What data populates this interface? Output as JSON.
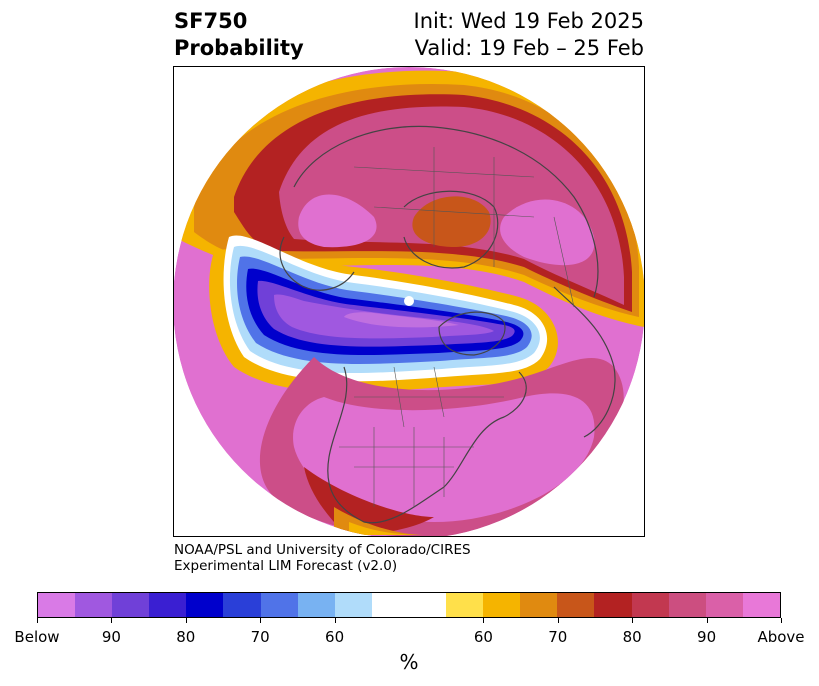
{
  "title": {
    "variable": "SF750",
    "kind": "Probability",
    "init": "Init: Wed 19 Feb 2025",
    "valid": "Valid: 19 Feb – 25 Feb"
  },
  "credit": {
    "line1": "NOAA/PSL and University of Colorado/CIRES",
    "line2": "Experimental LIM Forecast (v2.0)"
  },
  "colorbar": {
    "unit": "%",
    "colors": [
      "#d97ae6",
      "#a058e0",
      "#7040d8",
      "#3a1fd2",
      "#0000cc",
      "#2a3fd8",
      "#5073e8",
      "#78b2f2",
      "#b0dcfa",
      "#ffffff",
      "#ffe04a",
      "#f5b400",
      "#e08a10",
      "#c8561a",
      "#b32222",
      "#c23850",
      "#cc4e80",
      "#da60a8",
      "#e878d8"
    ],
    "ticks": [
      "Below",
      "90",
      "80",
      "70",
      "60",
      "60",
      "70",
      "80",
      "90",
      "Above"
    ]
  },
  "map": {
    "projection": "north-polar-stereographic",
    "colors": {
      "above_high": "#e070d0",
      "above_mid": "#cc4e88",
      "above_low": "#b32222",
      "orange": "#e08a10",
      "yellow": "#f5b400",
      "pale_yellow": "#ffe04a",
      "white": "#ffffff",
      "blue_pale": "#b0dcfa",
      "blue_light": "#5073e8",
      "blue_deep": "#0000cc",
      "purple": "#7040d8",
      "violet": "#a058e0",
      "lilac": "#c070e0"
    }
  }
}
